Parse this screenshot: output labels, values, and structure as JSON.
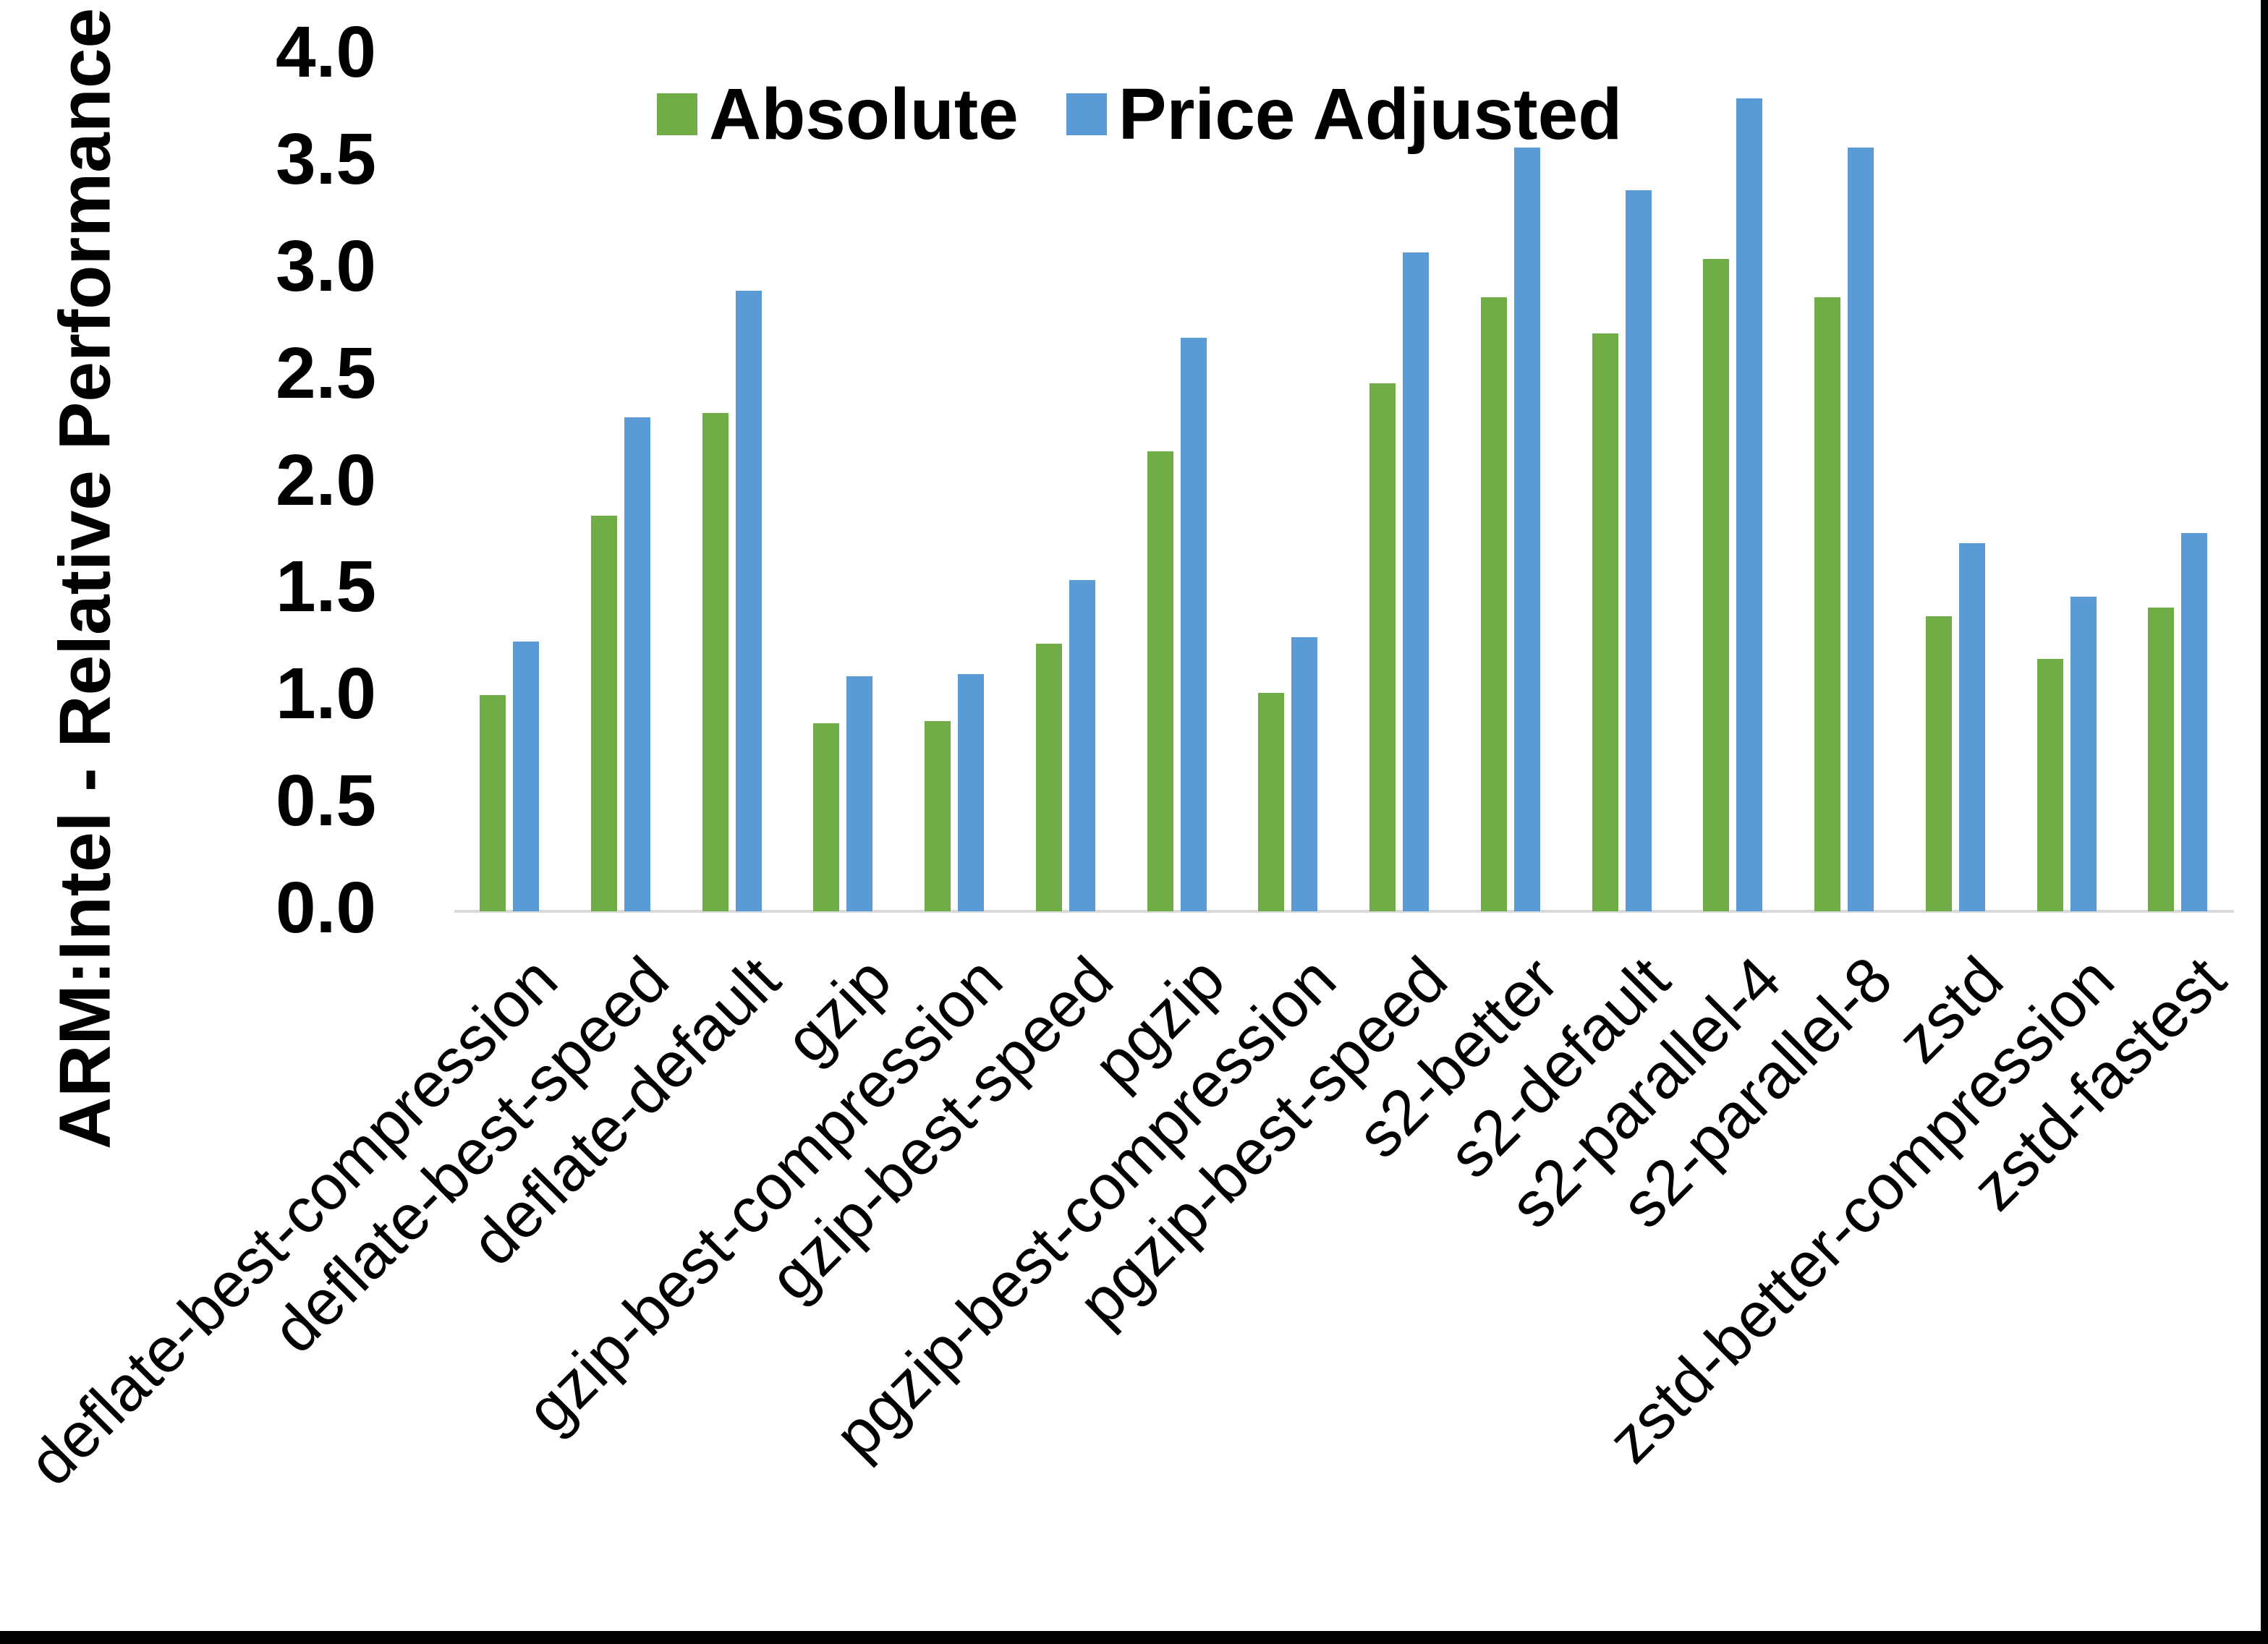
{
  "chart_data": {
    "type": "bar",
    "title": "",
    "ylabel": "ARM:Intel - Relative Performance",
    "xlabel": "",
    "ylim": [
      0.0,
      4.0
    ],
    "ytick_labels": [
      "0.0",
      "0.5",
      "1.0",
      "1.5",
      "2.0",
      "2.5",
      "3.0",
      "3.5",
      "4.0"
    ],
    "grid": false,
    "legend_position": "top-center",
    "categories": [
      "deflate-best-compression",
      "deflate-best-speed",
      "deflate-default",
      "gzip",
      "gzip-best-compression",
      "gzip-best-speed",
      "pgzip",
      "pgzip-best-compression",
      "pgzip-best-speed",
      "s2-better",
      "s2-default",
      "s2-parallel-4",
      "s2-parallel-8",
      "zstd",
      "zstd-better-compression",
      "zstd-fastest"
    ],
    "series": [
      {
        "name": "Absolute",
        "color": "#70AD47",
        "values": [
          1.01,
          1.85,
          2.33,
          0.88,
          0.89,
          1.25,
          2.15,
          1.02,
          2.47,
          2.87,
          2.7,
          3.05,
          2.87,
          1.38,
          1.18,
          1.42
        ]
      },
      {
        "name": "Price Adjusted",
        "color": "#5B9BD5",
        "values": [
          1.26,
          2.31,
          2.9,
          1.1,
          1.11,
          1.55,
          2.68,
          1.28,
          3.08,
          3.57,
          3.37,
          3.8,
          3.57,
          1.72,
          1.47,
          1.77
        ]
      }
    ]
  },
  "colors": {
    "background": "#FFFFFF",
    "axis_line": "#D9D9D9",
    "text": "#000000",
    "border_strip": "#000000"
  }
}
